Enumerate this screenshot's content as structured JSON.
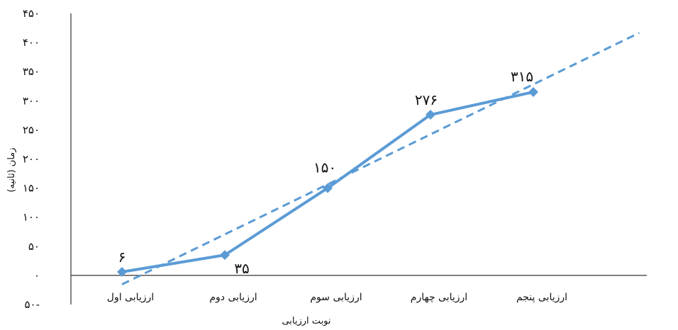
{
  "chart_data": {
    "type": "line",
    "title": "",
    "xlabel": "نوبت ارزیابی",
    "ylabel": "زمان (ثانیه)",
    "categories": [
      "ارزیابی اول",
      "ارزیابی دوم",
      "ارزیابی سوم",
      "ارزیابی چهارم",
      "ارزیابی پنجم"
    ],
    "series": [
      {
        "values": [
          6,
          35,
          150,
          276,
          315
        ],
        "color": "#5b9bd5"
      }
    ],
    "data_labels": [
      "۶",
      "۳۵",
      "۱۵۰",
      "۲۷۶",
      "۳۱۵"
    ],
    "trendline": {
      "type": "linear",
      "style": "dashed",
      "color": "#5b9bd5"
    },
    "ylim": [
      -50,
      450
    ],
    "yticks": [
      -50,
      0,
      50,
      100,
      150,
      200,
      250,
      300,
      350,
      400,
      450
    ],
    "ytick_labels": [
      "۵۰-",
      "۰",
      "۵۰",
      "۱۰۰",
      "۱۵۰",
      "۲۰۰",
      "۲۵۰",
      "۳۰۰",
      "۳۵۰",
      "۴۰۰",
      "۴۵۰"
    ],
    "grid": false,
    "legend": "none",
    "marker": "diamond"
  }
}
